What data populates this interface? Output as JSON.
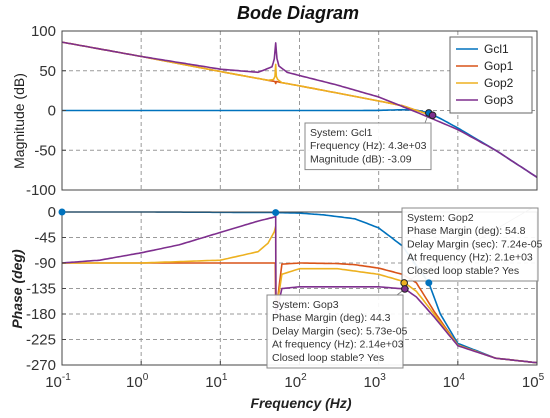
{
  "chart_data": [
    {
      "type": "line",
      "title": "Bode Diagram",
      "panel": "magnitude",
      "ylabel": "Magnitude (dB)",
      "xlabel": "",
      "xscale": "log",
      "xlim": [
        0.1,
        100000
      ],
      "ylim": [
        -100,
        100
      ],
      "yticks": [
        100,
        50,
        0,
        -50,
        -100
      ],
      "ytick_labels": [
        "100",
        "50",
        "0",
        "-50",
        "-100"
      ],
      "grid": true,
      "legend": {
        "placement": "top-right",
        "entries": [
          "Gcl1",
          "Gop1",
          "Gop2",
          "Gop3"
        ]
      },
      "series": [
        {
          "name": "Gcl1",
          "color": "#0072bd",
          "x": [
            0.1,
            1,
            10,
            100,
            500,
            1000,
            2000,
            3000,
            4300,
            6000,
            10000,
            30000,
            100000
          ],
          "y": [
            0,
            0,
            0,
            0,
            0,
            0.2,
            1.0,
            0.5,
            -3.09,
            -10,
            -22,
            -50,
            -84
          ]
        },
        {
          "name": "Gop1",
          "color": "#d95319",
          "x": [
            0.1,
            1,
            10,
            40,
            49,
            50,
            51,
            60,
            100,
            300,
            1000,
            2000,
            4000
          ],
          "y": [
            86,
            68,
            49,
            38,
            36.5,
            34,
            36.5,
            35,
            31,
            22,
            12,
            6,
            -4
          ]
        },
        {
          "name": "Gop2",
          "color": "#edb120",
          "x": [
            0.1,
            1,
            10,
            40,
            47,
            49,
            50,
            51,
            53,
            60,
            100,
            300,
            1000,
            2000,
            4000
          ],
          "y": [
            86,
            68,
            49,
            38,
            39,
            43,
            58,
            43,
            39,
            35,
            31,
            22,
            12,
            6,
            -4
          ]
        },
        {
          "name": "Gop3",
          "color": "#7e2f8e",
          "x": [
            0.1,
            1,
            10,
            30,
            45,
            48,
            50,
            52,
            55,
            70,
            100,
            300,
            1000,
            3000,
            10000,
            30000,
            100000
          ],
          "y": [
            86,
            68,
            52,
            48,
            55,
            65,
            85,
            65,
            56,
            48,
            44,
            32,
            17,
            -2,
            -24,
            -50,
            -84
          ]
        }
      ],
      "datatip": {
        "series": "Gcl1",
        "lines": [
          "System: Gcl1",
          "Frequency (Hz): 4.3e+03",
          "Magnitude (dB): -3.09"
        ]
      }
    },
    {
      "type": "line",
      "panel": "phase",
      "ylabel": "Phase (deg)",
      "xlabel": "Frequency  (Hz)",
      "xscale": "log",
      "xlim": [
        0.1,
        100000
      ],
      "xticks": [
        0.1,
        1,
        10,
        100,
        1000,
        10000,
        100000
      ],
      "xtick_bases": [
        "10",
        "10",
        "10",
        "10",
        "10",
        "10",
        "10"
      ],
      "xtick_exps": [
        "-1",
        "0",
        "1",
        "2",
        "3",
        "4",
        "5"
      ],
      "ylim": [
        -270,
        0
      ],
      "yticks": [
        0,
        -45,
        -90,
        -135,
        -180,
        -225,
        -270
      ],
      "ytick_labels": [
        "0",
        "-45",
        "-90",
        "-135",
        "-180",
        "-225",
        "-270"
      ],
      "grid": true,
      "series": [
        {
          "name": "Gcl1",
          "color": "#0072bd",
          "x": [
            0.1,
            1,
            10,
            50,
            100,
            200,
            500,
            1000,
            2000,
            3000,
            4300,
            6000,
            10000,
            30000,
            100000
          ],
          "y": [
            0,
            0,
            -0.5,
            -1,
            -2,
            -5,
            -12,
            -28,
            -60,
            -95,
            -125,
            -180,
            -232,
            -258,
            -266
          ]
        },
        {
          "name": "Gop1",
          "color": "#d95319",
          "x": [
            0.1,
            1,
            10,
            40,
            49.5,
            50,
            60,
            100,
            300,
            500,
            1000,
            2000,
            3000,
            5000,
            10000,
            30000,
            100000
          ],
          "y": [
            -90,
            -90,
            -90,
            -90,
            -90,
            -180,
            -92,
            -90,
            -91,
            -93,
            -99,
            -110,
            -125,
            -175,
            -235,
            -258,
            -266
          ]
        },
        {
          "name": "Gop2",
          "color": "#edb120",
          "x": [
            0.1,
            1,
            10,
            30,
            40,
            48,
            50,
            50.5,
            60,
            100,
            300,
            1000,
            2000,
            2140,
            3000,
            5000,
            10000,
            30000,
            100000
          ],
          "y": [
            -90,
            -90,
            -85,
            -70,
            -55,
            -35,
            -25,
            -175,
            -110,
            -100,
            -100,
            -110,
            -122,
            -125.2,
            -140,
            -180,
            -235,
            -258,
            -266
          ]
        },
        {
          "name": "Gop3",
          "color": "#7e2f8e",
          "x": [
            0.1,
            0.3,
            1,
            3,
            10,
            30,
            45,
            50,
            50.5,
            60,
            100,
            300,
            1000,
            2000,
            2140,
            3000,
            5000,
            10000,
            30000,
            100000
          ],
          "y": [
            -90,
            -85,
            -72,
            -58,
            -36,
            -16,
            -10,
            -8,
            -180,
            -135,
            -132,
            -132,
            -132,
            -135.5,
            -135.7,
            -150,
            -185,
            -236,
            -258,
            -266
          ]
        }
      ],
      "datatips": [
        {
          "series": "Gop2",
          "lines": [
            "System: Gop2",
            "Phase Margin (deg): 54.8",
            "Delay Margin (sec): 7.24e-05",
            "At frequency (Hz): 2.1e+03",
            "Closed loop stable? Yes"
          ]
        },
        {
          "series": "Gop3",
          "lines": [
            "System: Gop3",
            "Phase Margin (deg): 44.3",
            "Delay Margin (sec): 5.73e-05",
            "At frequency (Hz): 2.14e+03",
            "Closed loop stable? Yes"
          ]
        }
      ]
    }
  ]
}
